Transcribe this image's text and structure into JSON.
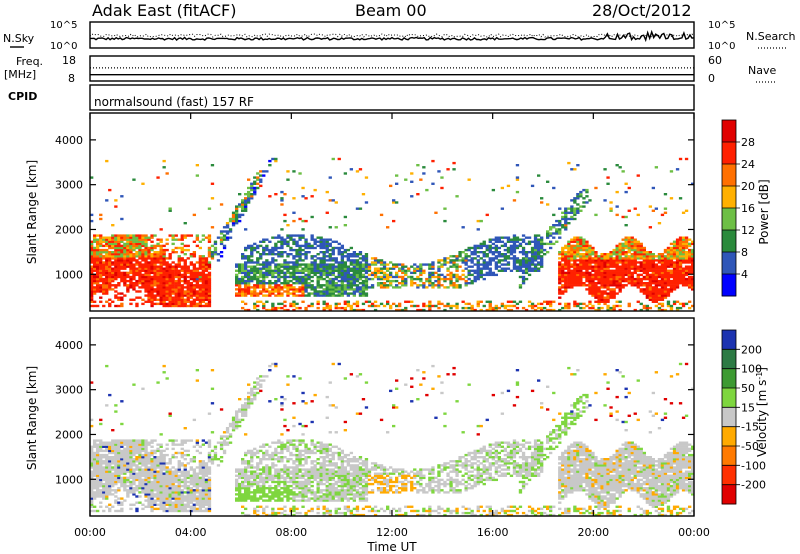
{
  "header": {
    "station": "Adak East (fitACF)",
    "beam": "Beam 00",
    "date": "28/Oct/2012"
  },
  "chart_data": [
    {
      "type": "line",
      "panel": "noise",
      "left_label": "N.Sky",
      "right_label": "N.Search",
      "left_ticks": [
        "10^5",
        "10^0"
      ],
      "right_ticks": [
        "10^5",
        "10^0"
      ],
      "yscale": "log",
      "series": [
        {
          "style": "solid"
        },
        {
          "style": "dotted"
        }
      ]
    },
    {
      "type": "line",
      "panel": "frequency",
      "left_label_1": "Freq.",
      "left_label_2": "[MHz]",
      "right_label": "Nave",
      "left_ticks": [
        "18",
        "8"
      ],
      "right_ticks": [
        "60",
        "0"
      ],
      "ylim_left": [
        8,
        18
      ],
      "ylim_right": [
        0,
        60
      ],
      "series": [
        {
          "style": "solid",
          "value": 10.4
        },
        {
          "style": "dotted",
          "value": 33
        }
      ]
    },
    {
      "type": "table",
      "panel": "cpid",
      "label": "CPID",
      "text": "normalsound (fast) 157 RF"
    },
    {
      "type": "heatmap",
      "panel": "power",
      "ylabel": "Slant Range [km]",
      "y_ticks": [
        "1000",
        "2000",
        "3000",
        "4000"
      ],
      "ylim": [
        180,
        4600
      ],
      "colorbar_label": "Power [dB]",
      "colorbar_ticks": [
        "4",
        "8",
        "12",
        "16",
        "20",
        "24",
        "28"
      ],
      "colorbar_colors": [
        "#0000ff",
        "#2f56b8",
        "#2a8a3c",
        "#6dbf45",
        "#ffb000",
        "#ff7000",
        "#ff2000",
        "#e00000"
      ]
    },
    {
      "type": "heatmap",
      "panel": "velocity",
      "ylabel": "Slant Range [km]",
      "y_ticks": [
        "1000",
        "2000",
        "3000",
        "4000"
      ],
      "ylim": [
        180,
        4600
      ],
      "colorbar_label_main": "Velocity [m s",
      "colorbar_label_sup": "-1",
      "colorbar_label_end": "]",
      "colorbar_ticks": [
        "200",
        "100",
        "50",
        "15",
        "-15",
        "-50",
        "-100",
        "-200"
      ],
      "colorbar_colors": [
        "#1c33b0",
        "#2c7a44",
        "#3d9a32",
        "#7ed63f",
        "#c8c8c8",
        "#ffaa00",
        "#ff7a00",
        "#ff3000",
        "#e00000"
      ],
      "xlabel": "Time UT",
      "x_ticks": [
        "00:00",
        "04:00",
        "08:00",
        "12:00",
        "16:00",
        "20:00",
        "00:00"
      ],
      "xlim_hours": [
        0,
        24
      ]
    }
  ]
}
